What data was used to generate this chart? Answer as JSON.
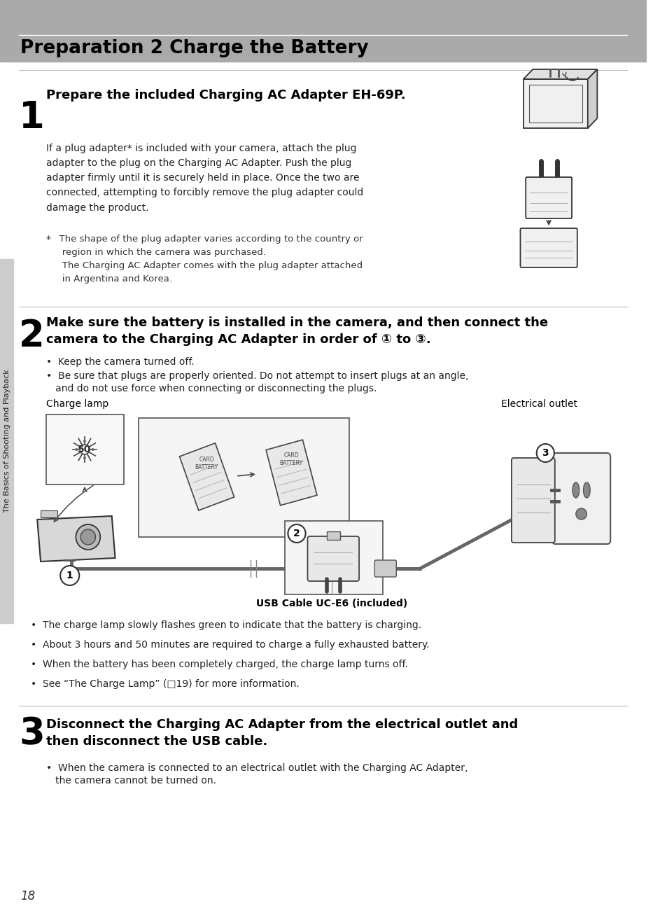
{
  "bg_color": "#ffffff",
  "header_bg": "#aaaaaa",
  "header_text": "Preparation 2 Charge the Battery",
  "header_text_color": "#000000",
  "page_number": "18",
  "sidebar_text": "The Basics of Shooting and Playback",
  "sidebar_bg": "#cccccc",
  "step1_number": "1",
  "step1_bold": "Prepare the included Charging AC Adapter EH-69P.",
  "step1_para1": "If a plug adapter* is included with your camera, attach the plug\nadapter to the plug on the Charging AC Adapter. Push the plug\nadapter firmly until it is securely held in place. Once the two are\nconnected, attempting to forcibly remove the plug adapter could\ndamage the product.",
  "step1_note_star": "*",
  "step1_note_body": "  The shape of the plug adapter varies according to the country or\n   region in which the camera was purchased.\n   The Charging AC Adapter comes with the plug adapter attached\n   in Argentina and Korea.",
  "step2_number": "2",
  "step2_bold_line1": "Make sure the battery is installed in the camera, and then connect the",
  "step2_bold_line2": "camera to the Charging AC Adapter in order of ① to ③.",
  "step2_bullet1": "•  Keep the camera turned off.",
  "step2_bullet2a": "•  Be sure that plugs are properly oriented. Do not attempt to insert plugs at an angle,",
  "step2_bullet2b": "   and do not use force when connecting or disconnecting the plugs.",
  "charge_lamp_label": "Charge lamp",
  "electrical_outlet_label": "Electrical outlet",
  "usb_label": "USB Cable UC-E6 (included)",
  "step2_bullet3": "•  The charge lamp slowly flashes green to indicate that the battery is charging.",
  "step2_bullet4": "•  About 3 hours and 50 minutes are required to charge a fully exhausted battery.",
  "step2_bullet5": "•  When the battery has been completely charged, the charge lamp turns off.",
  "step2_bullet6": "•  See “The Charge Lamp” (□19) for more information.",
  "step3_number": "3",
  "step3_bold_line1": "Disconnect the Charging AC Adapter from the electrical outlet and",
  "step3_bold_line2": "then disconnect the USB cable.",
  "step3_bullet1a": "•  When the camera is connected to an electrical outlet with the Charging AC Adapter,",
  "step3_bullet1b": "   the camera cannot be turned on.",
  "divider_color": "#bbbbbb",
  "text_color": "#222222",
  "note_color": "#333333"
}
